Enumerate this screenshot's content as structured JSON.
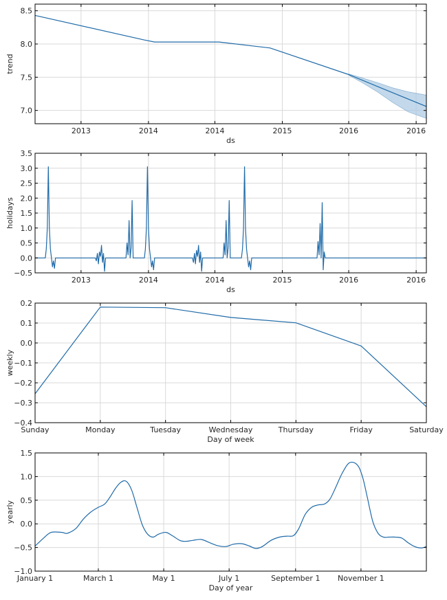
{
  "style": {
    "line_color": "#1f6aa8",
    "band_color": "#a9c9e3",
    "grid_color": "#d9d9d9"
  },
  "chart_data": [
    {
      "id": "trend",
      "type": "line",
      "xlabel": "ds",
      "ylabel": "trend",
      "xlim": [
        2012.55,
        2016.38
      ],
      "ylim": [
        6.8,
        8.6
      ],
      "xtick_positions": [
        2013.0,
        2013.66,
        2014.31,
        2014.97,
        2015.62,
        2016.28
      ],
      "xtick_labels": [
        "2013",
        "2014",
        "2014",
        "2015",
        "2016",
        "2016"
      ],
      "ytick_values": [
        7.0,
        7.5,
        8.0,
        8.5
      ],
      "ytick_labels": [
        "7.0",
        "7.5",
        "8.0",
        "8.5"
      ],
      "grid": true,
      "series": [
        {
          "x": [
            2012.55,
            2013.62,
            2013.72,
            2014.35,
            2014.85,
            2015.62,
            2015.95,
            2016.38
          ],
          "y": [
            8.43,
            8.06,
            8.03,
            8.03,
            7.94,
            7.54,
            7.33,
            7.06
          ]
        }
      ],
      "uncertainty_band": {
        "x": [
          2015.62,
          2015.75,
          2015.9,
          2016.05,
          2016.2,
          2016.38
        ],
        "lower": [
          7.53,
          7.42,
          7.28,
          7.12,
          6.98,
          6.88
        ],
        "upper": [
          7.55,
          7.49,
          7.42,
          7.34,
          7.28,
          7.23
        ]
      }
    },
    {
      "id": "holidays",
      "type": "line",
      "xlabel": "ds",
      "ylabel": "holidays",
      "xlim": [
        2012.55,
        2016.38
      ],
      "ylim": [
        -0.5,
        3.5
      ],
      "xtick_positions": [
        2013.0,
        2013.66,
        2014.31,
        2014.97,
        2015.62,
        2016.28
      ],
      "xtick_labels": [
        "2013",
        "2014",
        "2014",
        "2015",
        "2016",
        "2016"
      ],
      "ytick_values": [
        -0.5,
        0.0,
        0.5,
        1.0,
        1.5,
        2.0,
        2.5,
        3.0,
        3.5
      ],
      "ytick_labels": [
        "−0.5",
        "0.0",
        "0.5",
        "1.0",
        "1.5",
        "2.0",
        "2.5",
        "3.0",
        "3.5"
      ],
      "grid": true,
      "series": [
        {
          "x": [
            2012.55,
            2012.65,
            2012.66,
            2012.67,
            2012.68,
            2012.69,
            2012.7,
            2012.71,
            2012.72,
            2012.73,
            2012.74,
            2012.75,
            2012.76,
            2012.77,
            2012.78,
            2012.79,
            2013.14,
            2013.15,
            2013.16,
            2013.17,
            2013.18,
            2013.19,
            2013.2,
            2013.21,
            2013.22,
            2013.23,
            2013.24,
            2013.43,
            2013.44,
            2013.45,
            2013.46,
            2013.47,
            2013.48,
            2013.49,
            2013.5,
            2013.51,
            2013.52,
            2013.53,
            2013.61,
            2013.62,
            2013.63,
            2013.64,
            2013.65,
            2013.66,
            2013.67,
            2013.68,
            2013.69,
            2013.7,
            2013.71,
            2013.72,
            2013.73,
            2013.74,
            2013.75,
            2014.09,
            2014.1,
            2014.11,
            2014.12,
            2014.13,
            2014.14,
            2014.15,
            2014.16,
            2014.17,
            2014.18,
            2014.19,
            2014.2,
            2014.38,
            2014.39,
            2014.4,
            2014.41,
            2014.42,
            2014.43,
            2014.44,
            2014.45,
            2014.46,
            2014.47,
            2014.56,
            2014.57,
            2014.58,
            2014.59,
            2014.6,
            2014.61,
            2014.62,
            2014.63,
            2014.64,
            2014.65,
            2014.66,
            2014.67,
            2014.68,
            2014.69,
            2014.7,
            2015.3,
            2015.31,
            2015.32,
            2015.33,
            2015.34,
            2015.35,
            2015.36,
            2015.37,
            2015.38,
            2015.39,
            2015.4,
            2016.38
          ],
          "y": [
            0.0,
            0.0,
            0.3,
            1.0,
            3.05,
            1.0,
            0.3,
            0.0,
            -0.3,
            -0.1,
            -0.35,
            0.0,
            0.0,
            0.0,
            0.0,
            0.0,
            0.0,
            -0.1,
            0.15,
            -0.2,
            0.2,
            0.05,
            0.42,
            -0.15,
            0.15,
            -0.45,
            0.0,
            0.0,
            0.0,
            0.5,
            0.1,
            1.25,
            0.0,
            0.35,
            1.92,
            0.0,
            0.0,
            0.0,
            0.0,
            0.0,
            0.3,
            1.0,
            3.05,
            1.0,
            0.3,
            0.0,
            -0.3,
            -0.1,
            -0.4,
            0.0,
            0.0,
            0.0,
            0.0,
            0.0,
            -0.15,
            0.15,
            -0.2,
            0.25,
            0.05,
            0.42,
            -0.15,
            0.2,
            -0.45,
            0.0,
            0.0,
            0.0,
            0.0,
            0.5,
            0.1,
            1.25,
            0.0,
            0.35,
            1.92,
            0.0,
            0.0,
            0.0,
            0.0,
            0.3,
            1.0,
            3.05,
            1.0,
            0.3,
            0.0,
            -0.3,
            -0.1,
            -0.4,
            0.0,
            0.0,
            0.0,
            0.0,
            0.0,
            0.0,
            0.55,
            0.1,
            1.15,
            0.0,
            1.85,
            -0.4,
            0.2,
            0.0,
            0.0,
            0.0
          ]
        }
      ]
    },
    {
      "id": "weekly",
      "type": "line",
      "xlabel": "Day of week",
      "ylabel": "weekly",
      "categories": [
        "Sunday",
        "Monday",
        "Tuesday",
        "Wednesday",
        "Thursday",
        "Friday",
        "Saturday"
      ],
      "xlim": [
        0,
        6
      ],
      "ylim": [
        -0.4,
        0.2
      ],
      "ytick_values": [
        -0.4,
        -0.3,
        -0.2,
        -0.1,
        0.0,
        0.1,
        0.2
      ],
      "ytick_labels": [
        "−0.4",
        "−0.3",
        "−0.2",
        "−0.1",
        "0.0",
        "0.1",
        "0.2"
      ],
      "grid": true,
      "series": [
        {
          "x": [
            0,
            1,
            2,
            3,
            4,
            5,
            6
          ],
          "y": [
            -0.255,
            0.18,
            0.177,
            0.128,
            0.101,
            -0.015,
            -0.32
          ]
        }
      ]
    },
    {
      "id": "yearly",
      "type": "line",
      "xlabel": "Day of year",
      "ylabel": "yearly",
      "xlim": [
        0,
        365
      ],
      "ylim": [
        -1.0,
        1.5
      ],
      "xtick_positions": [
        0,
        59,
        120,
        181,
        243,
        304
      ],
      "xtick_labels": [
        "January 1",
        "March 1",
        "May 1",
        "July 1",
        "September 1",
        "November 1"
      ],
      "ytick_values": [
        -1.0,
        -0.5,
        0.0,
        0.5,
        1.0,
        1.5
      ],
      "ytick_labels": [
        "−1.0",
        "−0.5",
        "0.0",
        "0.5",
        "1.0",
        "1.5"
      ],
      "grid": true,
      "series": [
        {
          "x": [
            0,
            8,
            15,
            25,
            30,
            38,
            45,
            52,
            59,
            65,
            70,
            75,
            80,
            85,
            90,
            95,
            100,
            105,
            110,
            115,
            122,
            128,
            135,
            140,
            147,
            155,
            163,
            170,
            178,
            185,
            193,
            200,
            206,
            212,
            220,
            228,
            235,
            241,
            246,
            252,
            258,
            264,
            270,
            275,
            280,
            286,
            292,
            297,
            302,
            306,
            310,
            315,
            320,
            325,
            330,
            336,
            342,
            348,
            354,
            360,
            365
          ],
          "y": [
            -0.47,
            -0.3,
            -0.18,
            -0.18,
            -0.2,
            -0.1,
            0.1,
            0.25,
            0.35,
            0.42,
            0.57,
            0.75,
            0.88,
            0.9,
            0.72,
            0.35,
            -0.02,
            -0.22,
            -0.28,
            -0.22,
            -0.18,
            -0.25,
            -0.35,
            -0.37,
            -0.35,
            -0.33,
            -0.4,
            -0.46,
            -0.48,
            -0.43,
            -0.42,
            -0.47,
            -0.52,
            -0.48,
            -0.35,
            -0.28,
            -0.26,
            -0.25,
            -0.1,
            0.2,
            0.35,
            0.4,
            0.42,
            0.52,
            0.75,
            1.05,
            1.27,
            1.3,
            1.2,
            0.95,
            0.55,
            0.05,
            -0.2,
            -0.28,
            -0.28,
            -0.28,
            -0.3,
            -0.4,
            -0.48,
            -0.51,
            -0.48
          ]
        }
      ]
    }
  ]
}
